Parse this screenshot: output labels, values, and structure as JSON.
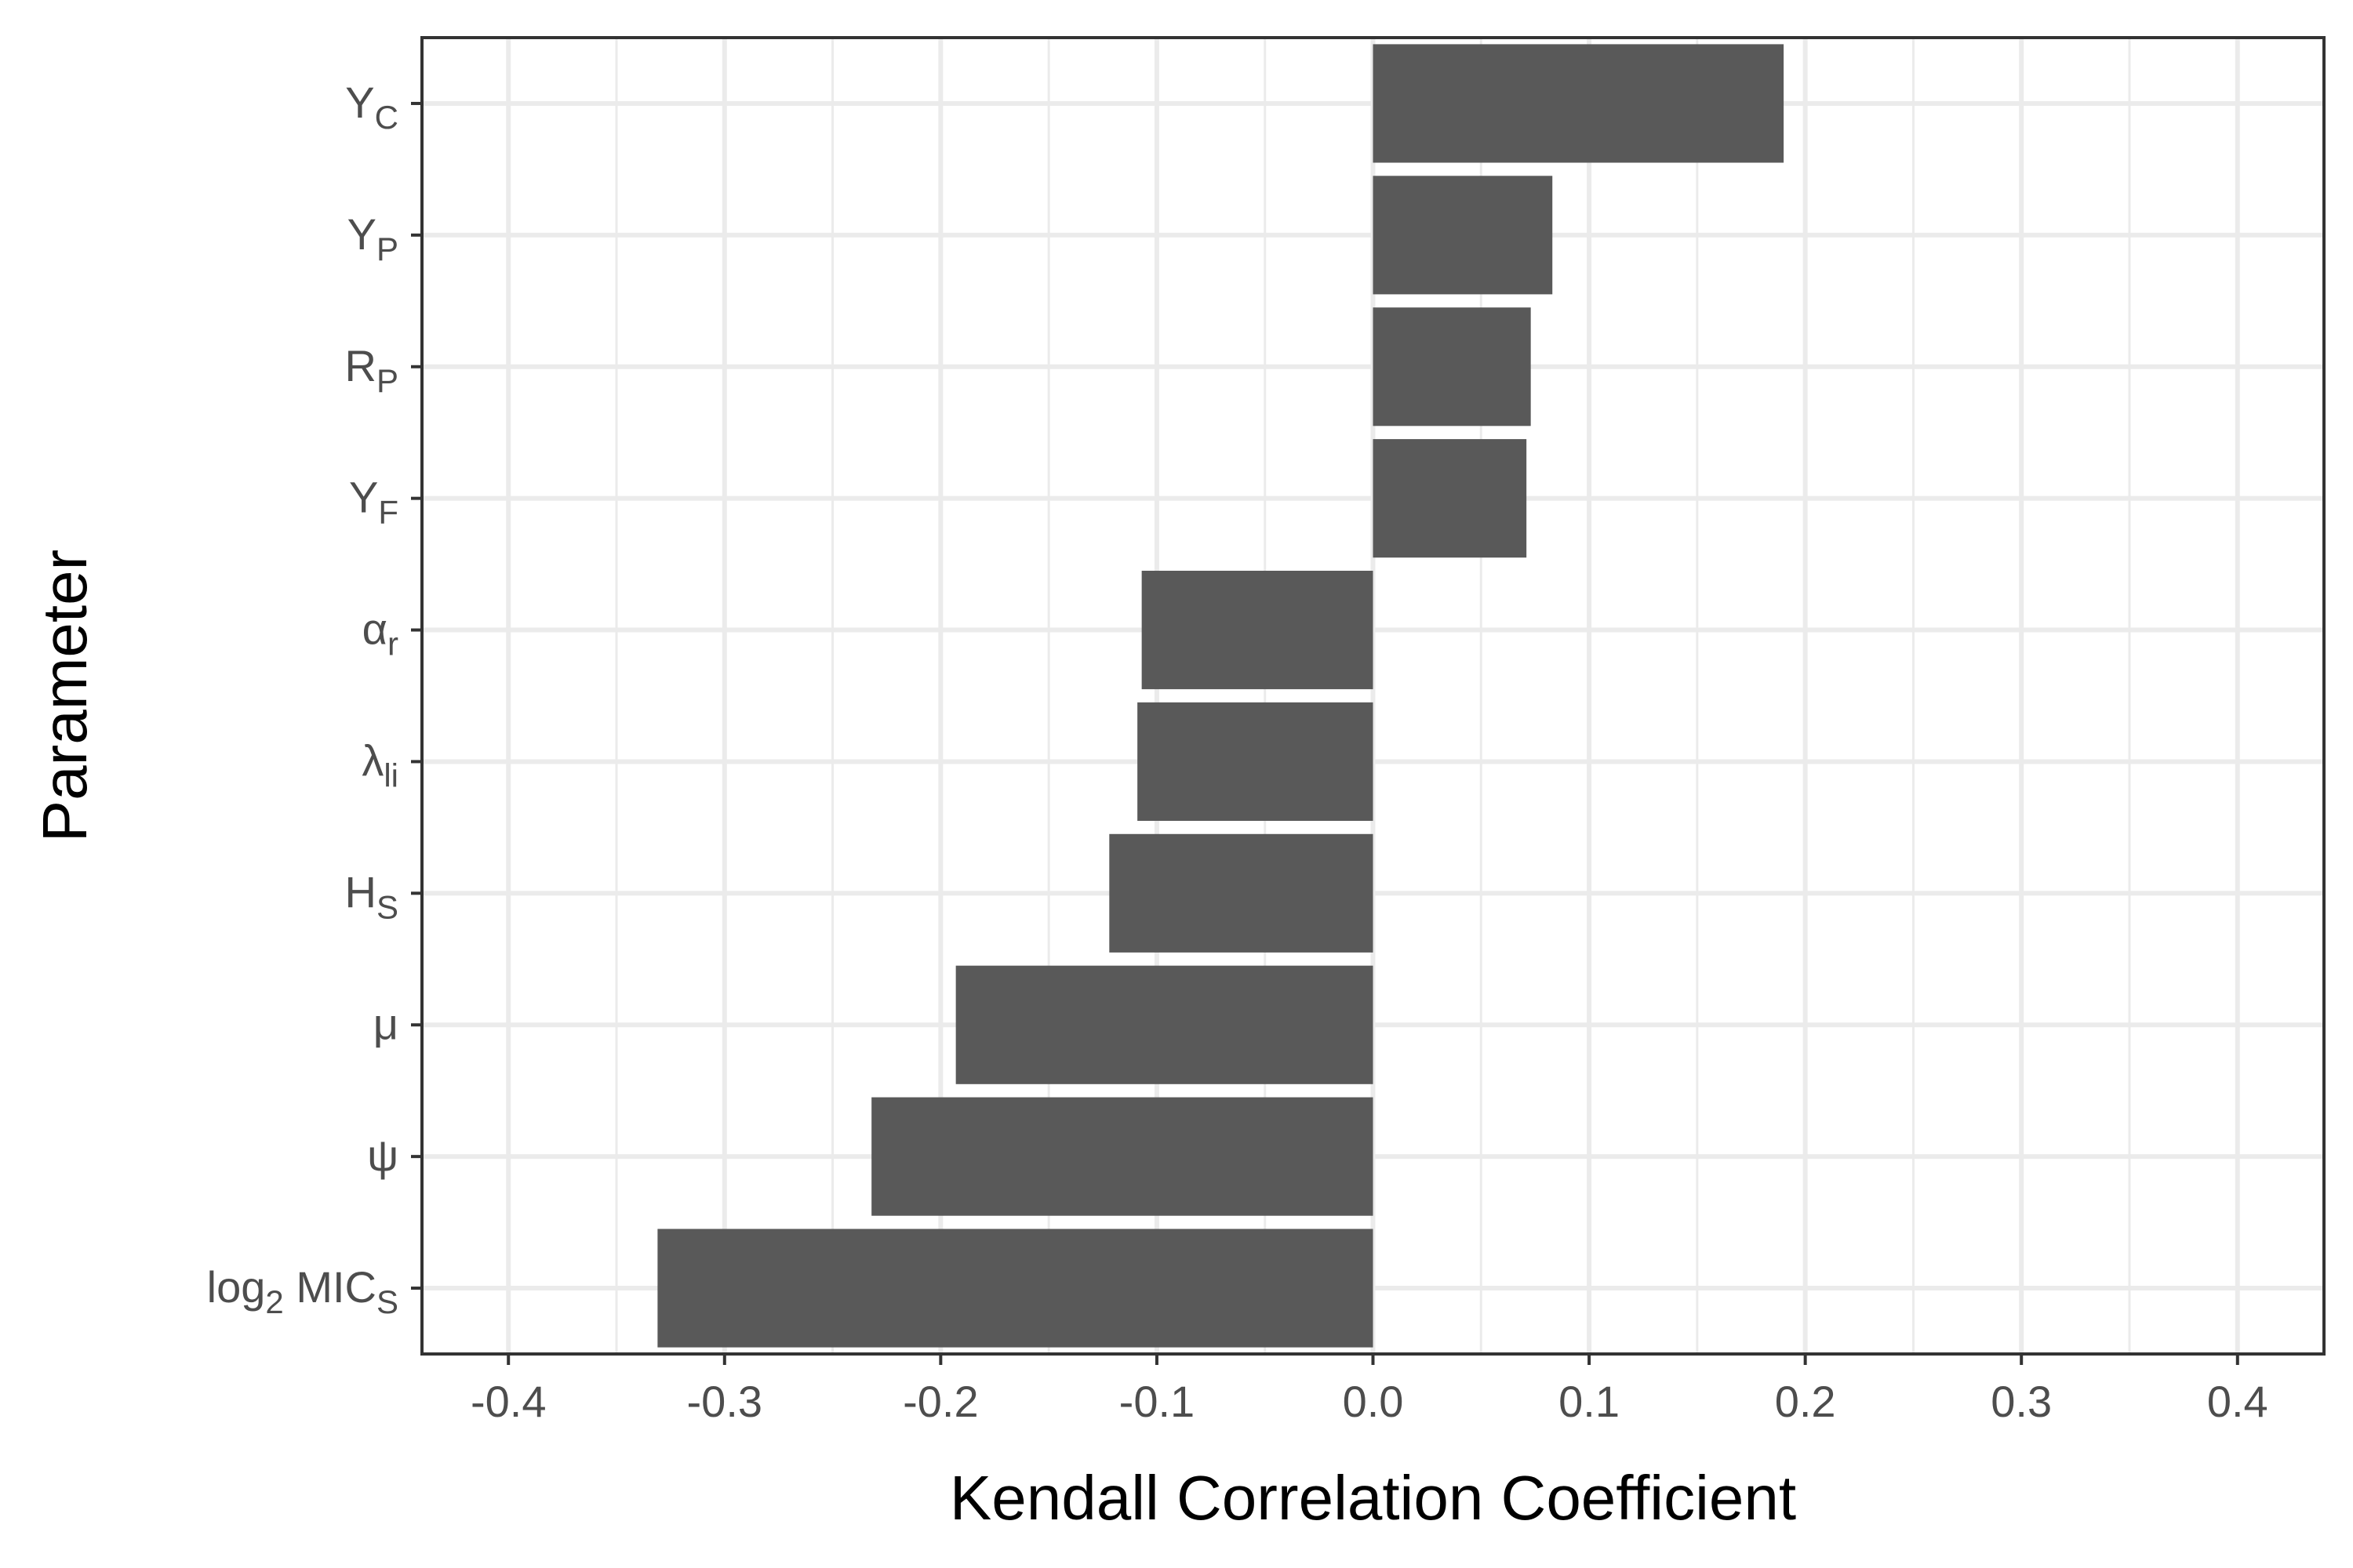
{
  "chart_data": {
    "type": "bar",
    "orientation": "horizontal",
    "title": "",
    "xlabel": "Kendall Correlation Coefficient",
    "ylabel": "Parameter",
    "xlim": [
      -0.44,
      0.44
    ],
    "xticks": [
      -0.4,
      -0.3,
      -0.2,
      -0.1,
      0.0,
      0.1,
      0.2,
      0.3,
      0.4
    ],
    "xtick_labels": [
      "-0.4",
      "-0.3",
      "-0.2",
      "-0.1",
      "0.0",
      "0.1",
      "0.2",
      "0.3",
      "0.4"
    ],
    "categories": [
      {
        "base": "Y",
        "sub": "C"
      },
      {
        "base": "Y",
        "sub": "P"
      },
      {
        "base": "R",
        "sub": "P"
      },
      {
        "base": "Y",
        "sub": "F"
      },
      {
        "base": "α",
        "sub": "r"
      },
      {
        "base": "λ",
        "sub": "li"
      },
      {
        "base": "H",
        "sub": "S"
      },
      {
        "base": "μ",
        "sub": ""
      },
      {
        "base": "ψ",
        "sub": ""
      },
      {
        "base": "log",
        "sub": "2",
        "tail": " MIC",
        "sub2": "S"
      }
    ],
    "values": [
      0.19,
      0.083,
      0.073,
      0.071,
      -0.107,
      -0.109,
      -0.122,
      -0.193,
      -0.232,
      -0.331
    ],
    "bar_color": "#595959",
    "grid": true,
    "legend": false
  }
}
